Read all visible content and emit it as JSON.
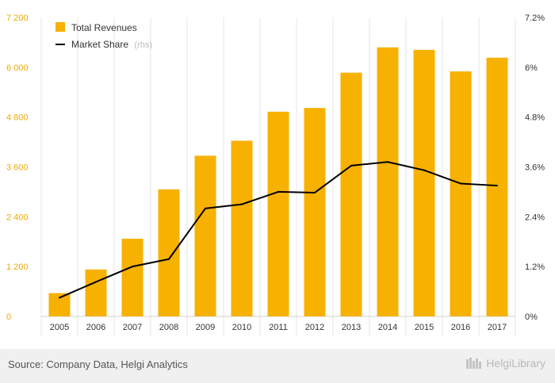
{
  "chart_data": {
    "type": "bar",
    "categories": [
      "2005",
      "2006",
      "2007",
      "2008",
      "2009",
      "2010",
      "2011",
      "2012",
      "2013",
      "2014",
      "2015",
      "2016",
      "2017"
    ],
    "series": [
      {
        "name": "Total Revenues",
        "type": "bar",
        "axis": "left",
        "color": "#f7b100",
        "values": [
          560,
          1130,
          1870,
          3060,
          3870,
          4230,
          4930,
          5020,
          5870,
          6480,
          6420,
          5900,
          6230
        ]
      },
      {
        "name": "Market Share",
        "type": "line",
        "axis": "right",
        "color": "#000000",
        "values": [
          0.45,
          0.83,
          1.2,
          1.38,
          2.6,
          2.7,
          3.0,
          2.98,
          3.63,
          3.72,
          3.52,
          3.2,
          3.15
        ]
      }
    ],
    "yleft_ticks": [
      "0",
      "1 200",
      "2 400",
      "3 600",
      "4 800",
      "6 000",
      "7 200"
    ],
    "yright_ticks": [
      "0%",
      "1.2%",
      "2.4%",
      "3.6%",
      "4.8%",
      "6%",
      "7.2%"
    ],
    "ylim_left": [
      0,
      7200
    ],
    "ylim_right": [
      0,
      7.2
    ],
    "legend": {
      "position": "top-left",
      "items": [
        {
          "label": "Total Revenues",
          "sub": ""
        },
        {
          "label": "Market Share",
          "sub": "(rhs)"
        }
      ]
    },
    "grid": "vertical-separators"
  },
  "footer": {
    "source": "Source: Company Data, Helgi Analytics",
    "brand": "HelgiLibrary"
  }
}
